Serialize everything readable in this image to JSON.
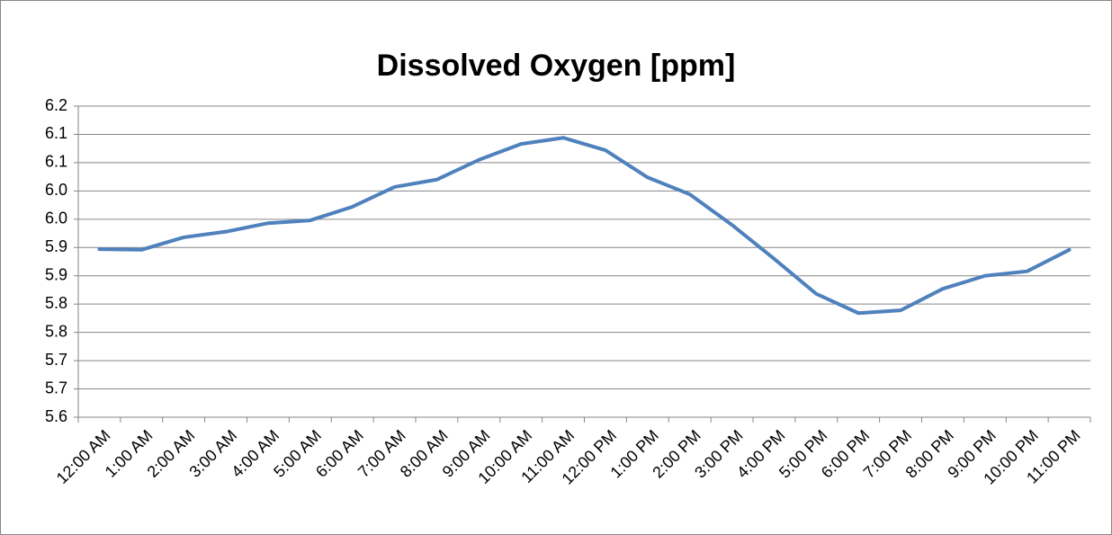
{
  "chart_data": {
    "type": "line",
    "title": "Dissolved Oxygen [ppm]",
    "categories": [
      "12:00 AM",
      "1:00 AM",
      "2:00 AM",
      "3:00 AM",
      "4:00 AM",
      "5:00 AM",
      "6:00 AM",
      "7:00 AM",
      "8:00 AM",
      "9:00 AM",
      "10:00 AM",
      "11:00 AM",
      "12:00 PM",
      "1:00 PM",
      "2:00 PM",
      "3:00 PM",
      "4:00 PM",
      "5:00 PM",
      "6:00 PM",
      "7:00 PM",
      "8:00 PM",
      "9:00 PM",
      "10:00 PM",
      "11:00 PM"
    ],
    "values": [
      5.897,
      5.896,
      5.918,
      5.928,
      5.943,
      5.948,
      5.972,
      6.007,
      6.02,
      6.055,
      6.083,
      6.094,
      6.072,
      6.024,
      5.994,
      5.94,
      5.88,
      5.818,
      5.784,
      5.789,
      5.827,
      5.85,
      5.858,
      5.896
    ],
    "color": "#4f81bd",
    "ylim": [
      5.6,
      6.15
    ],
    "yticks": [
      5.6,
      {
        "value": 5.65,
        "label": "5.7"
      },
      5.7,
      {
        "value": 5.75,
        "label": "5.8"
      },
      5.8,
      {
        "value": 5.85,
        "label": "5.9"
      },
      5.9,
      {
        "value": 5.95,
        "label": "6.0"
      },
      {
        "value": 6.0,
        "label": "6.0"
      },
      {
        "value": 6.05,
        "label": "6.1"
      },
      6.1,
      {
        "value": 6.15,
        "label": "6.2"
      }
    ],
    "grid": true
  }
}
